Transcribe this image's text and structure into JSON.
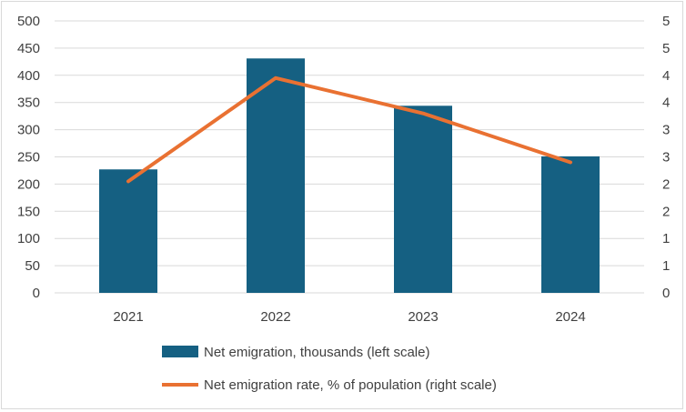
{
  "chart_data": {
    "type": "bar+line",
    "categories": [
      "2021",
      "2022",
      "2023",
      "2024"
    ],
    "series": [
      {
        "name": "Net emigration, thousands (left scale)",
        "type": "bar",
        "axis": "left",
        "color": "#156082",
        "values": [
          227,
          431,
          344,
          251
        ]
      },
      {
        "name": "Net emigration rate, % of population (right scale)",
        "type": "line",
        "axis": "right",
        "color": "#e97132",
        "values": [
          2.05,
          3.95,
          3.3,
          2.4
        ]
      }
    ],
    "left_axis": {
      "ylim": [
        0,
        500
      ],
      "ticks": [
        "0",
        "50",
        "100",
        "150",
        "200",
        "250",
        "300",
        "350",
        "400",
        "450",
        "500"
      ]
    },
    "right_axis": {
      "ylim": [
        0,
        5
      ],
      "ticks": [
        "0",
        "1",
        "1",
        "2",
        "2",
        "3",
        "3",
        "4",
        "4",
        "5",
        "5"
      ]
    },
    "grid": true,
    "legend_position": "bottom"
  }
}
